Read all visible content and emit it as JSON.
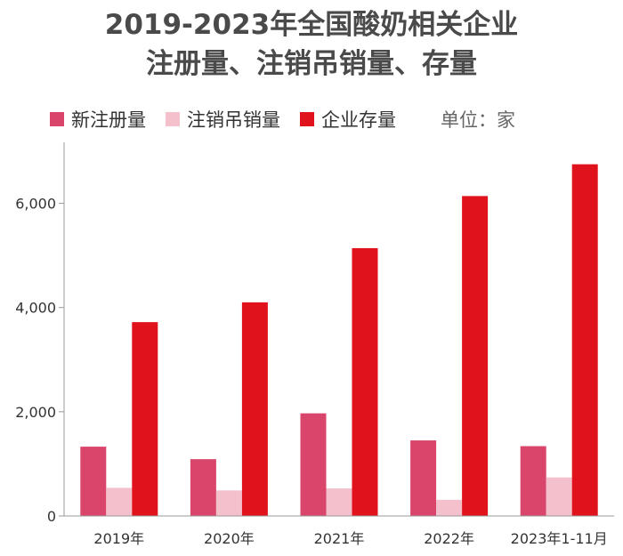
{
  "title": {
    "line1": "2019-2023年全国酸奶相关企业",
    "line2": "注册量、注销吊销量、存量"
  },
  "unit_label": "单位：家",
  "colors": {
    "new_registrations": "#d9456b",
    "cancellations": "#f3c0cc",
    "stock": "#e0121c",
    "axis": "#999999"
  },
  "chart_data": {
    "type": "bar",
    "categories": [
      "2019年",
      "2020年",
      "2021年",
      "2022年",
      "2023年1-11月"
    ],
    "series": [
      {
        "name": "新注册量",
        "values": [
          1330,
          1090,
          1970,
          1450,
          1340
        ]
      },
      {
        "name": "注销吊销量",
        "values": [
          540,
          490,
          530,
          310,
          740
        ]
      },
      {
        "name": "企业存量",
        "values": [
          3720,
          4100,
          5140,
          6140,
          6750
        ]
      }
    ],
    "ylim": [
      0,
      7000
    ],
    "yticks": [
      0,
      2000,
      4000,
      6000
    ],
    "ytick_labels": [
      "0",
      "2,000",
      "4,000",
      "6,000"
    ],
    "legend_position": "top-left",
    "grid": false
  }
}
